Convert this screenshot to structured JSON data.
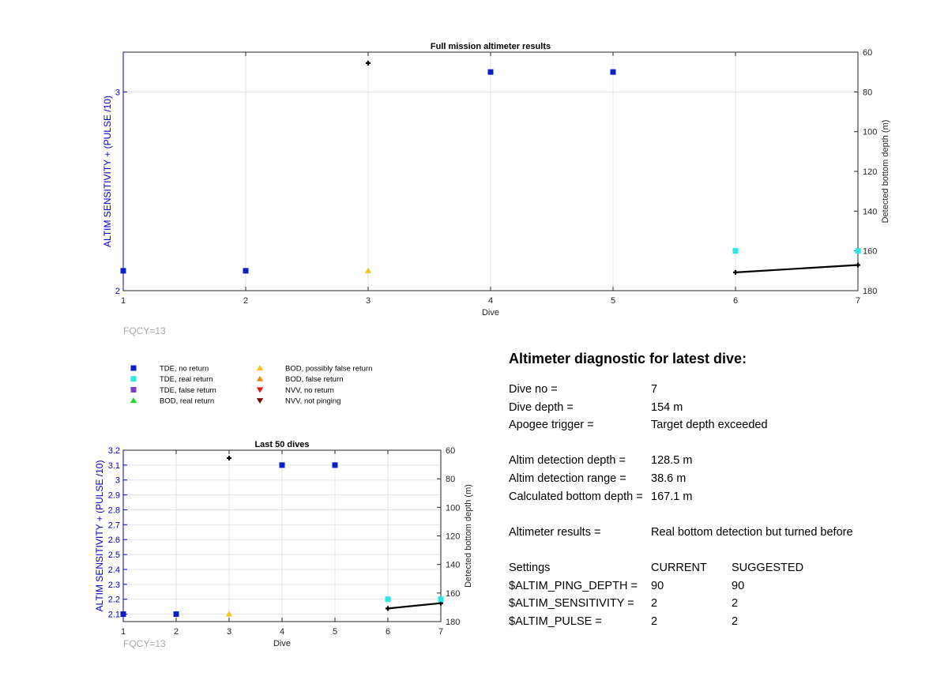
{
  "colors": {
    "tde_no_return": "#0b1fc8",
    "tde_real_return": "#2ee6e6",
    "tde_false_return": "#7b3fc8",
    "bod_real_return": "#1fd81f",
    "bod_possibly_false": "#f5c518",
    "bod_false_return": "#f08a1a",
    "nvv_no_return": "#e01b1b",
    "nvv_not_pinging": "#7a0a0a",
    "left_axis": "#0000cc",
    "bottom_line": "#000000",
    "annotation_gray": "#a6a6a6"
  },
  "chart_data": [
    {
      "type": "scatter",
      "title": "Full mission altimeter results",
      "xlabel": "Dive",
      "ylabel_left": "ALTIM SENSITIVITY + (PULSE /10)",
      "ylabel_right": "Detected bottom depth (m)",
      "xlim": [
        1,
        7
      ],
      "ylim_left": [
        2,
        3.2
      ],
      "ylim_right": [
        60,
        180
      ],
      "right_axis_reversed": true,
      "x_ticks": [
        "1",
        "2",
        "3",
        "4",
        "5",
        "6",
        "7"
      ],
      "y_left_ticks": [
        "2",
        "3"
      ],
      "y_right_ticks": [
        "60",
        "80",
        "100",
        "120",
        "140",
        "160",
        "180"
      ],
      "grid": true,
      "series": [
        {
          "name": "TDE, no return",
          "marker": "square",
          "points": [
            [
              1,
              2.1
            ],
            [
              2,
              2.1
            ],
            [
              4,
              3.1
            ],
            [
              5,
              3.1
            ]
          ]
        },
        {
          "name": "TDE, real return",
          "marker": "square",
          "points": [
            [
              6,
              2.2
            ],
            [
              7,
              2.2
            ]
          ]
        },
        {
          "name": "BOD, possibly false return",
          "marker": "triangle-up",
          "points": [
            [
              3,
              2.1
            ]
          ]
        }
      ],
      "bottom_depth_points": [
        [
          3,
          65.5
        ]
      ],
      "bottom_depth_line": [
        [
          6,
          170.8
        ],
        [
          7,
          167.1
        ]
      ]
    },
    {
      "type": "scatter",
      "title": "Last 50 dives",
      "xlabel": "Dive",
      "ylabel_left": "ALTIM SENSITIVITY + (PULSE /10)",
      "ylabel_right": "Detected bottom depth (m)",
      "xlim": [
        1,
        7
      ],
      "ylim_left": [
        2.05,
        3.2
      ],
      "ylim_right": [
        60,
        180
      ],
      "right_axis_reversed": true,
      "x_ticks": [
        "1",
        "2",
        "3",
        "4",
        "5",
        "6",
        "7"
      ],
      "y_left_ticks": [
        "2.1",
        "2.2",
        "2.3",
        "2.4",
        "2.5",
        "2.6",
        "2.7",
        "2.8",
        "2.9",
        "3",
        "3.1",
        "3.2"
      ],
      "y_right_ticks": [
        "60",
        "80",
        "100",
        "120",
        "140",
        "160",
        "180"
      ],
      "grid": true,
      "series": [
        {
          "name": "TDE, no return",
          "marker": "square",
          "points": [
            [
              1,
              2.1
            ],
            [
              2,
              2.1
            ],
            [
              4,
              3.1
            ],
            [
              5,
              3.1
            ]
          ]
        },
        {
          "name": "TDE, real return",
          "marker": "square",
          "points": [
            [
              6,
              2.2
            ],
            [
              7,
              2.2
            ]
          ]
        },
        {
          "name": "BOD, possibly false return",
          "marker": "triangle-up",
          "points": [
            [
              3,
              2.1
            ]
          ]
        }
      ],
      "bottom_depth_points": [
        [
          3,
          65.5
        ]
      ],
      "bottom_depth_line": [
        [
          6,
          170.8
        ],
        [
          7,
          167.1
        ]
      ]
    }
  ],
  "annotations": {
    "fqcy_top": "FQCY=13",
    "fqcy_bottom": "FQCY=13"
  },
  "legend": [
    {
      "label": "TDE, no return",
      "marker": "square",
      "color": "#0b1fc8"
    },
    {
      "label": "TDE, real return",
      "marker": "square",
      "color": "#2ee6e6"
    },
    {
      "label": "TDE, false return",
      "marker": "square",
      "color": "#7b3fc8"
    },
    {
      "label": "BOD, real return",
      "marker": "triangle-up",
      "color": "#1fd81f"
    },
    {
      "label": "BOD, possibly false return",
      "marker": "triangle-up",
      "color": "#f5c518"
    },
    {
      "label": "BOD, false return",
      "marker": "triangle-up",
      "color": "#f08a1a"
    },
    {
      "label": "NVV, no return",
      "marker": "triangle-down",
      "color": "#e01b1b"
    },
    {
      "label": "NVV, not pinging",
      "marker": "triangle-down",
      "color": "#7a0a0a"
    }
  ],
  "diagnostic": {
    "title": "Altimeter diagnostic for latest dive:",
    "dive_no_label": "Dive no =",
    "dive_no_value": "7",
    "dive_depth_label": "Dive depth =",
    "dive_depth_value": "154 m",
    "apogee_label": "Apogee trigger =",
    "apogee_value": "Target depth exceeded",
    "altim_depth_label": "Altim detection depth =",
    "altim_depth_value": "128.5 m",
    "altim_range_label": "Altim detection range =",
    "altim_range_value": "38.6 m",
    "calc_bottom_label": "Calculated bottom depth =",
    "calc_bottom_value": "167.1 m",
    "results_label": "Altimeter results =",
    "results_value": "Real bottom detection but turned before",
    "settings_label": "Settings",
    "current_header": "CURRENT",
    "suggested_header": "SUGGESTED",
    "settings": [
      {
        "name": "$ALTIM_PING_DEPTH =",
        "current": "90",
        "suggested": "90"
      },
      {
        "name": "$ALTIM_SENSITIVITY =",
        "current": "2",
        "suggested": "2"
      },
      {
        "name": "$ALTIM_PULSE =",
        "current": "2",
        "suggested": "2"
      }
    ]
  }
}
